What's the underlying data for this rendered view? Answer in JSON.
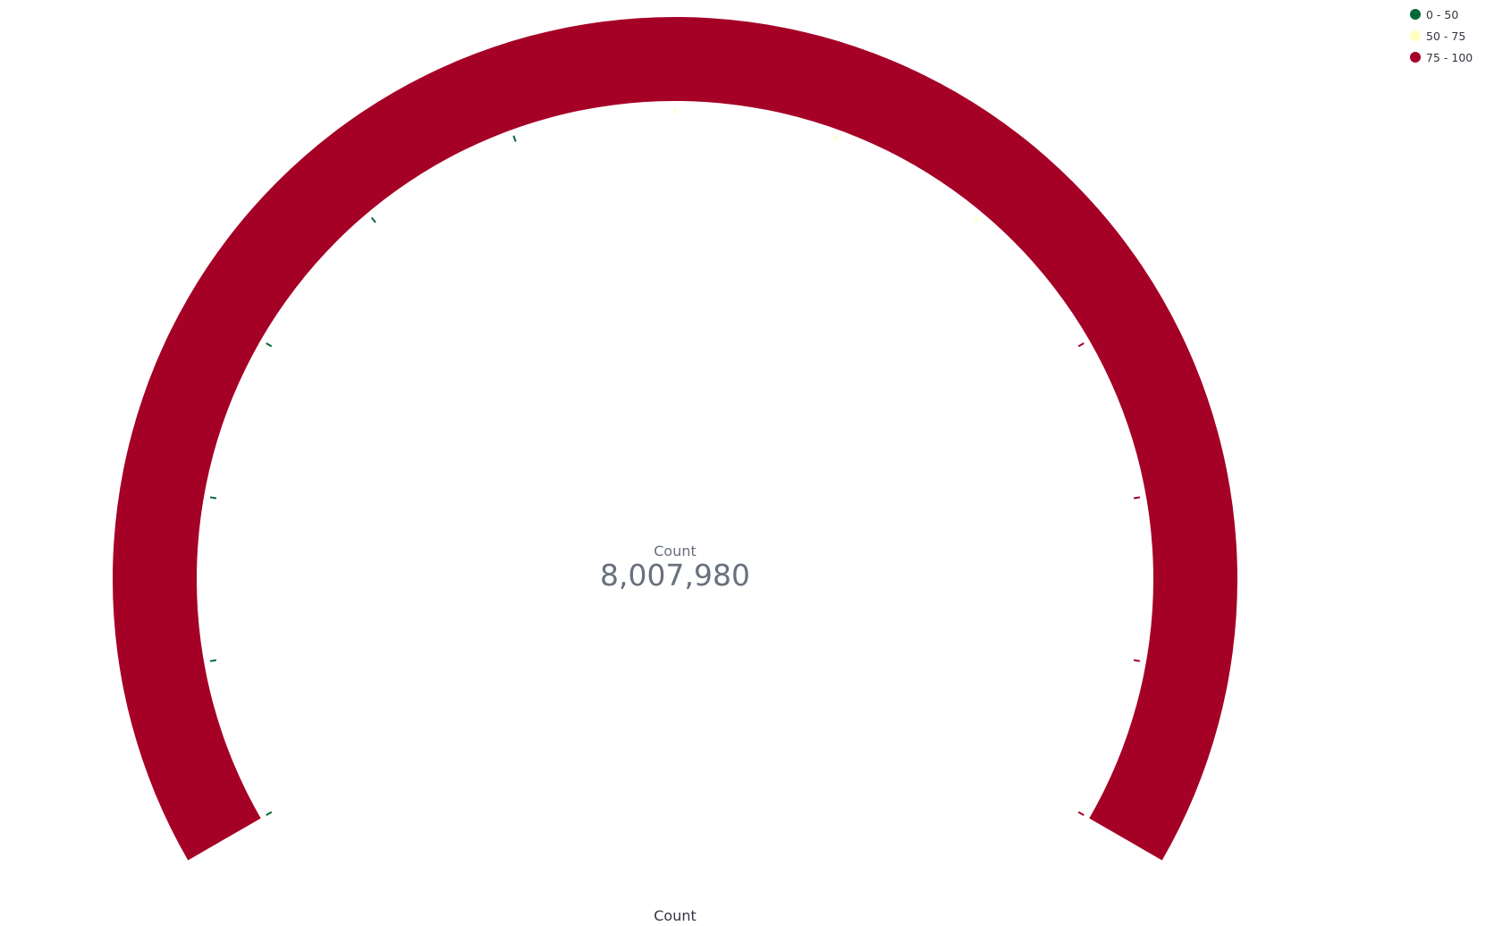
{
  "chart_data": {
    "type": "gauge",
    "metric_label": "Count",
    "value": 8007980,
    "value_display": "8,007,980",
    "axis_label": "Count",
    "range": [
      0,
      100
    ],
    "tick_count": 13,
    "legend_placement": "top-right",
    "ranges": [
      {
        "label": "0 - 50",
        "from": 0,
        "to": 50,
        "color": "#006837"
      },
      {
        "label": "50 - 75",
        "from": 50,
        "to": 75,
        "color": "#ffffbf"
      },
      {
        "label": "75 - 100",
        "from": 75,
        "to": 100,
        "color": "#a50026"
      }
    ],
    "active_color": "#a50026"
  }
}
